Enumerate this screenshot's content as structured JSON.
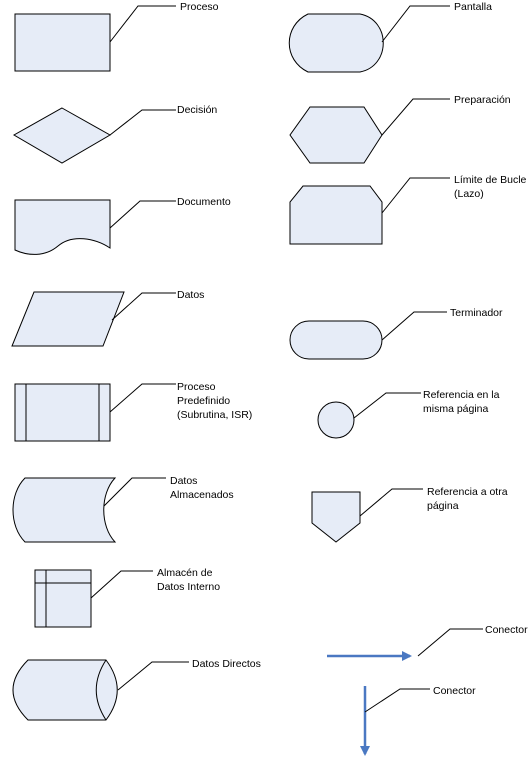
{
  "colors": {
    "shape_fill": "#e6ecf7",
    "stroke": "#000000",
    "connector": "#4a78c2"
  },
  "labels": {
    "proceso": "Proceso",
    "decision": "Decisión",
    "documento": "Documento",
    "datos": "Datos",
    "proceso_predefinido": "Proceso\nPredefinido\n(Subrutina, ISR)",
    "datos_almacenados": "Datos\nAlmacenados",
    "almacen_interno": "Almacén de\nDatos Interno",
    "datos_directos": "Datos Directos",
    "pantalla": "Pantalla",
    "preparacion": "Preparación",
    "limite_bucle": "Límite de Bucle\n(Lazo)",
    "terminador": "Terminador",
    "referencia_misma": "Referencia en la\nmisma página",
    "referencia_otra": "Referencia a otra\npágina",
    "conector_horizontal": "Conector",
    "conector_vertical": "Conector"
  }
}
